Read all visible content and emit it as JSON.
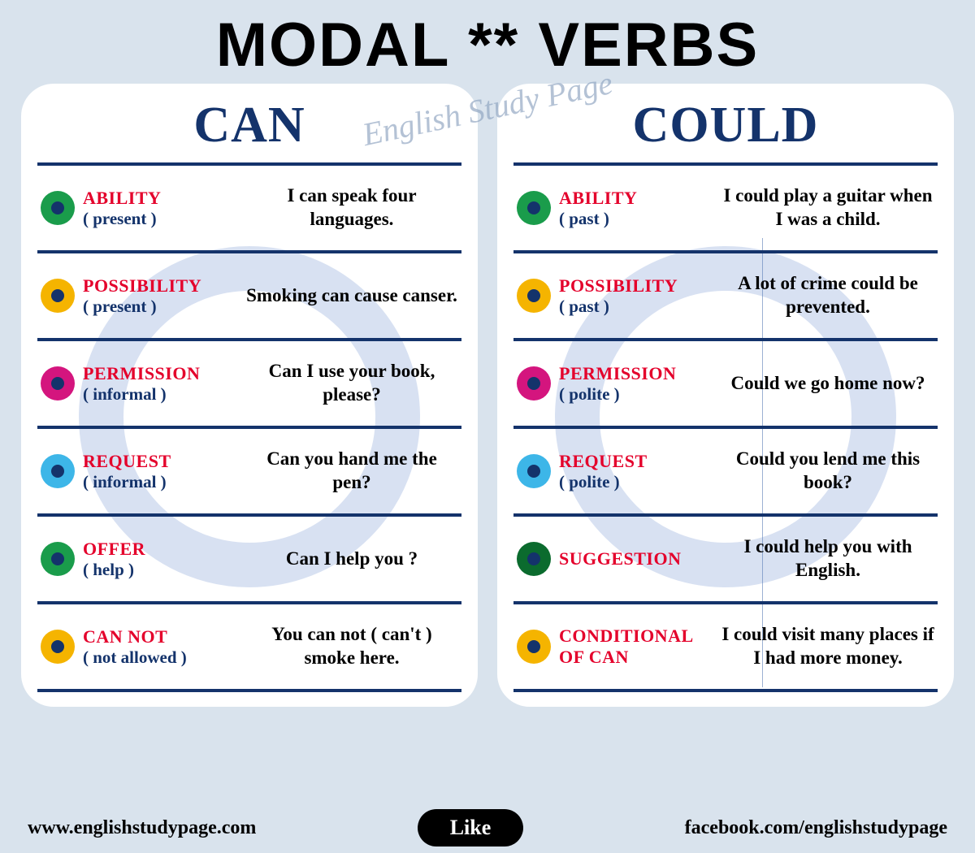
{
  "title": "MODAL ** VERBS",
  "watermark_text": "English Study Page",
  "colors": {
    "page_bg": "#d9e3ed",
    "panel_bg": "#ffffff",
    "heading_navy": "#14336b",
    "category_red": "#e4002b",
    "watermark_ring": "#b8c8e8",
    "bullet_green": "#1a9c4b",
    "bullet_yellow": "#f5b400",
    "bullet_magenta": "#d4157e",
    "bullet_cyan": "#3db6e8",
    "bullet_darkgreen": "#0b6b2e",
    "bullet_inner": "#14336b",
    "pill_bg": "#000000",
    "pill_text": "#ffffff"
  },
  "left": {
    "heading": "CAN",
    "rows": [
      {
        "bullet": "#1a9c4b",
        "cat": "ABILITY",
        "sub": "( present )",
        "ex": "I can speak four languages."
      },
      {
        "bullet": "#f5b400",
        "cat": "POSSIBILITY",
        "sub": "( present )",
        "ex": "Smoking can cause canser."
      },
      {
        "bullet": "#d4157e",
        "cat": "PERMISSION",
        "sub": "( informal )",
        "ex": "Can I use your book, please?"
      },
      {
        "bullet": "#3db6e8",
        "cat": "REQUEST",
        "sub": "( informal )",
        "ex": "Can you hand me the pen?"
      },
      {
        "bullet": "#1a9c4b",
        "cat": "OFFER",
        "sub": "( help )",
        "ex": "Can I help you ?"
      },
      {
        "bullet": "#f5b400",
        "cat": "CAN NOT",
        "sub": "( not allowed )",
        "ex": "You can not ( can't ) smoke here."
      }
    ]
  },
  "right": {
    "heading": "COULD",
    "rows": [
      {
        "bullet": "#1a9c4b",
        "cat": "ABILITY",
        "sub": "( past )",
        "ex": "I  could play a guitar when I was a child."
      },
      {
        "bullet": "#f5b400",
        "cat": "POSSIBILITY",
        "sub": "( past )",
        "ex": "A lot of crime could be prevented."
      },
      {
        "bullet": "#d4157e",
        "cat": "PERMISSION",
        "sub": "( polite )",
        "ex": "Could we go home now?"
      },
      {
        "bullet": "#3db6e8",
        "cat": "REQUEST",
        "sub": "( polite )",
        "ex": "Could you lend me this book?"
      },
      {
        "bullet": "#0b6b2e",
        "cat": "SUGGESTION",
        "sub": "",
        "ex": "I could help you with English."
      },
      {
        "bullet": "#f5b400",
        "cat": "CONDITIONAL OF CAN",
        "sub": "",
        "ex": "I could visit many places if I had more money."
      }
    ]
  },
  "footer": {
    "left_url": "www.englishstudypage.com",
    "like_label": "Like",
    "right_url": "facebook.com/englishstudypage"
  }
}
